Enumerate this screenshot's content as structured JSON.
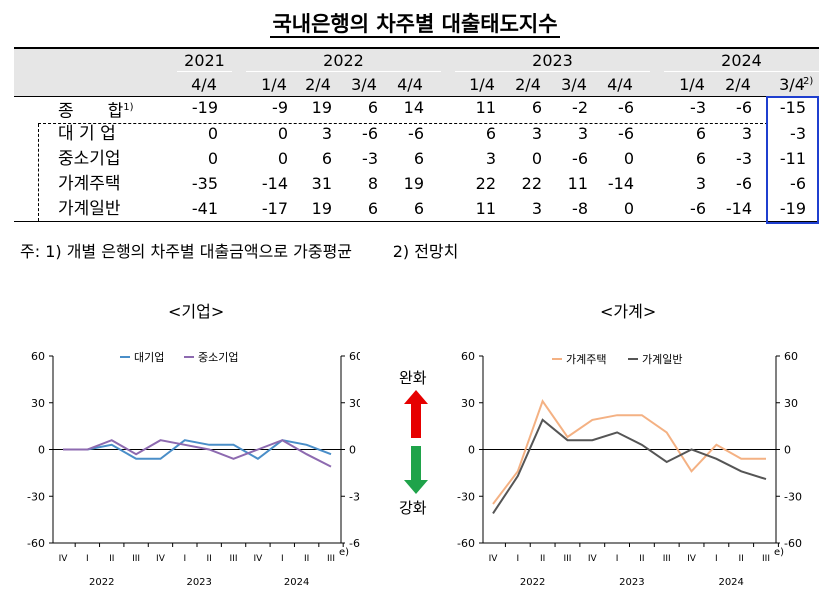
{
  "title": "국내은행의 차주별 대출태도지수",
  "table": {
    "years": [
      "2021",
      "2022",
      "2023",
      "2024"
    ],
    "quarters": [
      "4/4",
      "1/4",
      "2/4",
      "3/4",
      "4/4",
      "1/4",
      "2/4",
      "3/4",
      "4/4",
      "1/4",
      "2/4",
      "3/4"
    ],
    "forecast_mark": "2)",
    "rows": [
      {
        "label": "종　　합",
        "sup": "1)",
        "values": [
          "-19",
          "-9",
          "19",
          "6",
          "14",
          "11",
          "6",
          "-2",
          "-6",
          "-3",
          "-6",
          "-15"
        ]
      },
      {
        "label": "대 기 업",
        "sup": "",
        "values": [
          "0",
          "0",
          "3",
          "-6",
          "-6",
          "6",
          "3",
          "3",
          "-6",
          "6",
          "3",
          "-3"
        ]
      },
      {
        "label": "중소기업",
        "sup": "",
        "values": [
          "0",
          "0",
          "6",
          "-3",
          "6",
          "3",
          "0",
          "-6",
          "0",
          "6",
          "-3",
          "-11"
        ]
      },
      {
        "label": "가계주택",
        "sup": "",
        "values": [
          "-35",
          "-14",
          "31",
          "8",
          "19",
          "22",
          "22",
          "11",
          "-14",
          "3",
          "-6",
          "-6"
        ]
      },
      {
        "label": "가계일반",
        "sup": "",
        "values": [
          "-41",
          "-17",
          "19",
          "6",
          "6",
          "11",
          "3",
          "-8",
          "0",
          "-6",
          "-14",
          "-19"
        ]
      }
    ]
  },
  "note": "주: 1) 개별 은행의 차주별 대출금액으로 가중평균        2) 전망치",
  "middle": {
    "top_label": "완화",
    "bottom_label": "강화",
    "up_color": "#e60000",
    "down_color": "#1fa34a"
  },
  "chart_data": [
    {
      "type": "line",
      "title": "<기업>",
      "x": [
        "IV",
        "I",
        "II",
        "III",
        "IV",
        "I",
        "II",
        "III",
        "IV",
        "I",
        "II",
        "III"
      ],
      "x_groups": [
        {
          "label": "2022"
        },
        {
          "label": "2023"
        },
        {
          "label": "2024"
        }
      ],
      "x_suffix": "e)",
      "ylim": [
        -60,
        60
      ],
      "yticks": [
        "60",
        "30",
        "0",
        "-30",
        "-60"
      ],
      "legend": "top",
      "series": [
        {
          "name": "대기업",
          "color": "#4a8ec8",
          "values": [
            0,
            0,
            3,
            -6,
            -6,
            6,
            3,
            3,
            -6,
            6,
            3,
            -3
          ]
        },
        {
          "name": "중소기업",
          "color": "#8d6ab0",
          "values": [
            0,
            0,
            6,
            -3,
            6,
            3,
            0,
            -6,
            0,
            6,
            -3,
            -11
          ]
        }
      ]
    },
    {
      "type": "line",
      "title": "<가계>",
      "x": [
        "IV",
        "I",
        "II",
        "III",
        "IV",
        "I",
        "II",
        "III",
        "IV",
        "I",
        "II",
        "III"
      ],
      "x_groups": [
        {
          "label": "2022"
        },
        {
          "label": "2023"
        },
        {
          "label": "2024"
        }
      ],
      "x_suffix": "e)",
      "ylim": [
        -60,
        60
      ],
      "yticks": [
        "60",
        "30",
        "0",
        "-30",
        "-60"
      ],
      "legend": "top",
      "series": [
        {
          "name": "가계주택",
          "color": "#f4b183",
          "values": [
            -35,
            -14,
            31,
            8,
            19,
            22,
            22,
            11,
            -14,
            3,
            -6,
            -6
          ]
        },
        {
          "name": "가계일반",
          "color": "#555555",
          "values": [
            -41,
            -17,
            19,
            6,
            6,
            11,
            3,
            -8,
            0,
            -6,
            -14,
            -19
          ]
        }
      ]
    }
  ]
}
